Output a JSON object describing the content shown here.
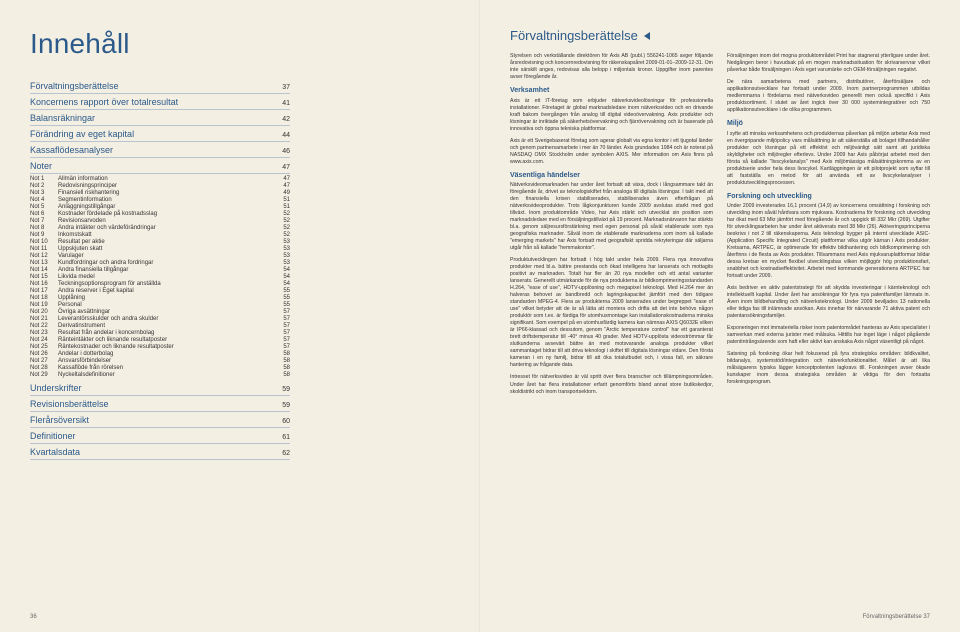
{
  "left": {
    "title": "Innehåll",
    "footer": "36",
    "sections_before_notes": [
      {
        "label": "Förvaltningsberättelse",
        "page": "37"
      },
      {
        "label": "Koncernens rapport över totalresultat",
        "page": "41"
      },
      {
        "label": "Balansräkningar",
        "page": "42"
      },
      {
        "label": "Förändring av eget kapital",
        "page": "44"
      },
      {
        "label": "Kassaflödesanalyser",
        "page": "46"
      },
      {
        "label": "Noter",
        "page": "47"
      }
    ],
    "notes": [
      {
        "n": "Not 1",
        "t": "Allmän information",
        "p": "47"
      },
      {
        "n": "Not 2",
        "t": "Redovisningsprinciper",
        "p": "47"
      },
      {
        "n": "Not 3",
        "t": "Finansiell riskhantering",
        "p": "49"
      },
      {
        "n": "Not 4",
        "t": "Segmentinformation",
        "p": "51"
      },
      {
        "n": "Not 5",
        "t": "Anläggningstillgångar",
        "p": "51"
      },
      {
        "n": "Not 6",
        "t": "Kostnader fördelade på kostnadsslag",
        "p": "52"
      },
      {
        "n": "Not 7",
        "t": "Revisionsarvoden",
        "p": "52"
      },
      {
        "n": "Not 8",
        "t": "Andra intäkter och värdeförändringar",
        "p": "52"
      },
      {
        "n": "Not 9",
        "t": "Inkomstskatt",
        "p": "52"
      },
      {
        "n": "Not 10",
        "t": "Resultat per aktie",
        "p": "53"
      },
      {
        "n": "Not 11",
        "t": "Uppskjuten skatt",
        "p": "53"
      },
      {
        "n": "Not 12",
        "t": "Varulager",
        "p": "53"
      },
      {
        "n": "Not 13",
        "t": "Kundfordringar och andra fordringar",
        "p": "53"
      },
      {
        "n": "Not 14",
        "t": "Andra finansiella tillgångar",
        "p": "54"
      },
      {
        "n": "Not 15",
        "t": "Likvida medel",
        "p": "54"
      },
      {
        "n": "Not 16",
        "t": "Teckningsoptionsprogram för anställda",
        "p": "54"
      },
      {
        "n": "Not 17",
        "t": "Andra reserver i Eget kapital",
        "p": "55"
      },
      {
        "n": "Not 18",
        "t": "Upplåning",
        "p": "55"
      },
      {
        "n": "Not 19",
        "t": "Personal",
        "p": "55"
      },
      {
        "n": "Not 20",
        "t": "Övriga avsättningar",
        "p": "57"
      },
      {
        "n": "Not 21",
        "t": "Leverantörsskulder och andra skulder",
        "p": "57"
      },
      {
        "n": "Not 22",
        "t": "Derivatinstrument",
        "p": "57"
      },
      {
        "n": "Not 23",
        "t": "Resultat från andelar i koncernbolag",
        "p": "57"
      },
      {
        "n": "Not 24",
        "t": "Ränteintäkter och liknande resultatposter",
        "p": "57"
      },
      {
        "n": "Not 25",
        "t": "Räntekostnader och liknande resultatposter",
        "p": "57"
      },
      {
        "n": "Not 26",
        "t": "Andelar i dotterbolag",
        "p": "58"
      },
      {
        "n": "Not 27",
        "t": "Ansvarsförbindelser",
        "p": "58"
      },
      {
        "n": "Not 28",
        "t": "Kassaflöde från rörelsen",
        "p": "58"
      },
      {
        "n": "Not 29",
        "t": "Nyckeltalsdefinitioner",
        "p": "58"
      }
    ],
    "sections_after_notes": [
      {
        "label": "Underskrifter",
        "page": "59"
      },
      {
        "label": "Revisionsberättelse",
        "page": "59"
      },
      {
        "label": "Flerårsöversikt",
        "page": "60"
      },
      {
        "label": "Definitioner",
        "page": "61"
      },
      {
        "label": "Kvartalsdata",
        "page": "62"
      }
    ]
  },
  "right": {
    "heading": "Förvaltningsberättelse",
    "footer": "Förvaltningsberättelse   37",
    "col1": {
      "p1": "Styrelsen och verkställande direktören för Axis AB (publ.) 556241-1065 avger följande årsredovisning och koncernredovisning för räkenskapsåret 2009-01-01–2009-12-31. Om inte särskilt anges, redovisas alla belopp i miljontals kronor. Uppgifter inom parentes avser föregående år.",
      "h1": "Verksamhet",
      "p2": "Axis är ett IT-företag som erbjuder nätverksvideolösningar för professionella installationer. Företaget är global marknadsledare inom nätverksvideo och en drivande kraft bakom övergången från analog till digital videoövervakning. Axis produkter och lösningar är inriktade på säkerhetsövervakning och fjärrövervakning och är baserade på innovativa och öppna tekniska plattformar.",
      "p3": "Axis är ett Sverigebaserat företag som agerar globalt via egna kontor i ett tjugotal länder och genom partnersamarbete i mer än 70 länder. Axis grundades 1984 och är noterat på NASDAQ OMX Stockholm under symbolen AXIS. Mer information om Axis finns på www.axis.com.",
      "h2": "Väsentliga händelser",
      "p4": "Nätverksvideomarknaden har under året fortsatt att växa, dock i långsammare takt än föregående år, drivet av teknologiskiftet från analoga till digitala lösningar. I takt med att den finansiella krisen stabiliserades, stabiliserades även efterfrågan på nätverksvideoprodukter. Trots lågkonjunkturen kunde 2009 avslutas starkt med god tillväxt. Inom produktområde Video, har Axis stärkt och utvecklat sin position som marknadsledare med en försäljningstillväxt på 19 procent. Marknadsnärvaron har stärkts bl.a. genom säljresursförstärkning med egen personal på såväl etablerade som nya geografiska marknader. Såväl inom de etablerade marknaderna som inom så kallade \"emerging markets\" har Axis fortsatt med geografiskt spridda rekryteringar där säljarna utgår från så kallade \"hemmakontor\".",
      "p5": "Produktutvecklingen har fortsatt i hög takt under hela 2009. Flera nya innovativa produkter med bl.a. bättre prestanda och ökad intelligens har lanserats och mottagits positivt av marknaden. Totalt har fler än 20 nya modeller och ett antal varianter lanserats. Generellt utmärkande för de nya produkterna är bildkomprimeringsstandarden H.264, \"ease of use\", HDTV-upplösning och megapixel teknologi. Med H.264 mer än halveras behovet av bandbredd och lagringskapacitet jämfört med den tidigare standarden MPEG-4. Flera av produkterna 2009 lanserades under begreppet \"ease of use\" vilket betyder att de är så lätta att montera och drifta att det inte behövs någon produktör som t.ex. är färdiga för utomhusmontage kan installationskostnaderna minska signifikant. Som exempel på en utomhusfärdig kamera kan nämnas AXIS Q6032E vilken är IP66-klassad och dessutom, genom \"Arctic temperature control\" har ett garanterat brett driftstemperatur till -40° minus 40 grader. Med HDTV-upplösta videoströmmar får slutkunderna avsevärt bättre än med motsvarande analoga produkter vilket sammantaget bidrar till att driva teknologi i skiftet till digitala lösningar vidare. Den första kameran i en ny familj, bidrar till att öka totalutbudet och, i vissa fall, en säkrare hantering av frågande data.",
      "p6": "Intresset för nätverksvideo är väl spritt över flera branscher och tillämpningsområden. Under året har flera installationer erfarit genomförts bland annat store butikskedjor, skoldistrikt och inom transportsektorn."
    },
    "col2": {
      "p1": "Försäljningen inom det mogna produktområdet Print har stagnerat ytterligare under året. Nedgången beror i huvudsak på en mogen marknadssituation för skrivarservrar vilket påverkar både försäljningen i Axis eget varumärke och OEM-försäljningen negativt.",
      "p2": "De nära samarbetena med partners, distributörer, återförsäljare och applikationsutvecklare har fortsatt under 2009. Inom partnerprogrammen utbildas medlemmarna i fördelarna med nätverksvideo generellt men också specifikt i Axis produktsortiment. I slutet av året ingick över 30 000 systemintegratörer och 750 applikationsutvecklare i de olika programmen.",
      "h1": "Miljö",
      "p3": "I syfte att minska verksamhetens och produkternas påverkan på miljön arbetar Axis med en övergripande miljöpolicy vars målsättning är att säkerställa att bolaget tillhandahåller produkter och lösningar på ett effektivt och miljövänligt sätt samt att juridiska skyldigheter och miljöregler efterlevs. Under 2009 har Axis påbörjat arbetet med den första så kallade \"livscykelanalys\" med Axis miljömässiga målsättningskomma av en produktserie under hela dess livscykel. Kartläggningen är ett pilotprojekt som syftar till att fastställa en metod för att använda ett av livscykelanalyser i produktutvecklingsprocessen.",
      "h2": "Forskning och utveckling",
      "p4": "Under 2009 investerades 16,1 procent (14,9) av koncernens omsättning i forskning och utveckling inom såväl hårdvara som mjukvara. Kostnaderna för forskning och utveckling har ökat med 63 Mkr jämfört med föregående år och uppgick till 332 Mkr (269). Utgifter för utvecklingsarbeten har under året aktiverats med 38 Mkr (26). Aktiveringsprinciperna beskrivs i not 2 till räkenskaperna. Axis teknologi bygger på internt utvecklade ASIC-(Application Specific Integrated Circuit) plattformar vilka utgör kärnan i Axis produkter. Kretsarna, ARTPEC, är optimerade för effektiv bildhantering och bildkomprimering och återfinns i de flesta av Axis produkter. Tillsammans med Axis mjukvaruplattformar bildar dessa kretsar en mycket flexibel utvecklingsbas vilken möjliggör hög produktionsfart, snabbhet och kostnadseffektivitet. Arbetet med kommande generationens ARTPEC har fortsatt under 2009.",
      "p5": "Axis bedriver en aktiv patentstrategi för att skydda investeringar i kärnteknologi och intellektuellt kapital. Under året har ansökningar för fyra nya patentfamiljer lämnats in. Även inom bildbehandling och nätverksteknologi. Under 2009 beviljades 13 nationella eller tidiga fas till inlämnade ansökan. Axis innehar för närvarande 71 aktiva patent och patentansökningsfamiljer.",
      "p6": "Exponeringen mot immateriella risker inom patentområdet hanteras av Axis specialister i samverkan med externa jurister med målsuka. Hittills har inget läge i något pågående patentintrångsärende som haft eller aktivt kan anskaka Axis något väsentligt på något.",
      "p7": "Satsning på forskning ökar helt fokuserad på fyra strategiska områden: bildkvalitet, bildanalys, systemstöd/integration och nätverksfunktionalitet. Målet är att lika målsägarens typiska lägger konceptpotenten lagkravs till. Forskningen avser ökade kunskaper inom dessa strategiska områden är viktiga för den fortsatta forskningsprogram."
    }
  },
  "colors": {
    "background": "#f4efe3",
    "accent_blue": "#2b5a8a",
    "text": "#333333",
    "rule": "#b8c4d0"
  }
}
